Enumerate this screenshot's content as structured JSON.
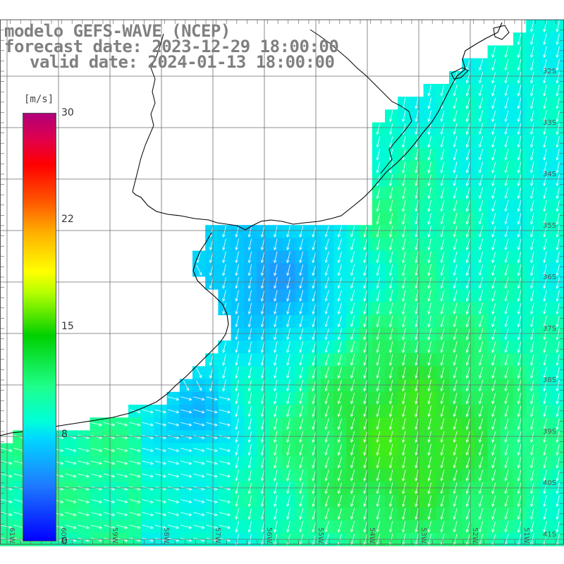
{
  "title": {
    "line1": "modelo GEFS-WAVE (NCEP)",
    "line2": "forecast date: 2023-12-29 18:00:00",
    "line3": "valid date: 2024-01-13 18:00:00"
  },
  "colorbar": {
    "unit": "[m/s]",
    "ticks": [
      "30",
      "22",
      "15",
      "8",
      "0"
    ],
    "colors": [
      "#0000ff",
      "#1e7bff",
      "#00d8ff",
      "#00ffd8",
      "#1eff8c",
      "#00d000",
      "#b4ff00",
      "#ffff00",
      "#ffb000",
      "#ff5000",
      "#ff0000",
      "#b0007a"
    ]
  },
  "lat_labels": [
    "32S",
    "33S",
    "34S",
    "35S",
    "36S",
    "37S",
    "38S",
    "39S",
    "40S",
    "41S"
  ],
  "lon_labels": [
    "61W",
    "60W",
    "59W",
    "58W",
    "57W",
    "56W",
    "55W",
    "54W",
    "53W",
    "52W",
    "51W"
  ],
  "colors": {
    "land": "#ffffff",
    "grid": "#6e6e6e",
    "coast": "#000000",
    "title_text": "#808080",
    "arrow": "#ffffff"
  }
}
